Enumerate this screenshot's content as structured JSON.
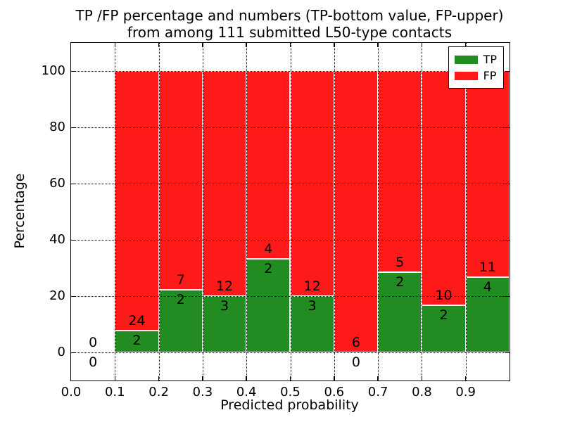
{
  "chart_data": {
    "type": "bar",
    "stacked": true,
    "title_lines": [
      "TP /FP percentage and numbers (TP-bottom value, FP-upper)",
      "from among 111 submitted L50-type contacts"
    ],
    "xlabel": "Predicted probability",
    "ylabel": "Percentage",
    "xlim": [
      0.0,
      1.0
    ],
    "ylim": [
      -10,
      110
    ],
    "xticks": [
      "0.0",
      "0.1",
      "0.2",
      "0.3",
      "0.4",
      "0.5",
      "0.6",
      "0.7",
      "0.8",
      "0.9"
    ],
    "yticks": [
      0,
      20,
      40,
      60,
      80,
      100
    ],
    "grid": "dotted-both-axes",
    "bar_edge_color": "#ffffff",
    "total_contacts": 111,
    "legend": {
      "position": "upper-right",
      "entries": [
        {
          "label": "TP",
          "color": "#228B22"
        },
        {
          "label": "FP",
          "color": "#FF1A1A"
        }
      ]
    },
    "series": [
      {
        "name": "TP",
        "color": "#228B22",
        "counts": [
          0,
          2,
          2,
          3,
          2,
          3,
          0,
          2,
          2,
          4
        ]
      },
      {
        "name": "FP",
        "color": "#FF1A1A",
        "counts": [
          0,
          24,
          7,
          12,
          4,
          12,
          6,
          5,
          10,
          11
        ]
      }
    ],
    "bins": [
      {
        "range": [
          0.0,
          0.1
        ],
        "tp": 0,
        "fp": 0,
        "tp_pct": 0,
        "fp_pct": 0,
        "draw_bar": false
      },
      {
        "range": [
          0.1,
          0.2
        ],
        "tp": 2,
        "fp": 24,
        "tp_pct": 7.69,
        "fp_pct": 92.31,
        "draw_bar": true
      },
      {
        "range": [
          0.2,
          0.3
        ],
        "tp": 2,
        "fp": 7,
        "tp_pct": 22.22,
        "fp_pct": 77.78,
        "draw_bar": true
      },
      {
        "range": [
          0.3,
          0.4
        ],
        "tp": 3,
        "fp": 12,
        "tp_pct": 20.0,
        "fp_pct": 80.0,
        "draw_bar": true
      },
      {
        "range": [
          0.4,
          0.5
        ],
        "tp": 2,
        "fp": 4,
        "tp_pct": 33.33,
        "fp_pct": 66.67,
        "draw_bar": true
      },
      {
        "range": [
          0.5,
          0.6
        ],
        "tp": 3,
        "fp": 12,
        "tp_pct": 20.0,
        "fp_pct": 80.0,
        "draw_bar": true
      },
      {
        "range": [
          0.6,
          0.7
        ],
        "tp": 0,
        "fp": 6,
        "tp_pct": 0.0,
        "fp_pct": 100.0,
        "draw_bar": true
      },
      {
        "range": [
          0.7,
          0.8
        ],
        "tp": 2,
        "fp": 5,
        "tp_pct": 28.57,
        "fp_pct": 71.43,
        "draw_bar": true
      },
      {
        "range": [
          0.8,
          0.9
        ],
        "tp": 2,
        "fp": 10,
        "tp_pct": 16.67,
        "fp_pct": 83.33,
        "draw_bar": true
      },
      {
        "range": [
          0.9,
          1.0
        ],
        "tp": 4,
        "fp": 11,
        "tp_pct": 26.67,
        "fp_pct": 73.33,
        "draw_bar": true
      }
    ]
  }
}
